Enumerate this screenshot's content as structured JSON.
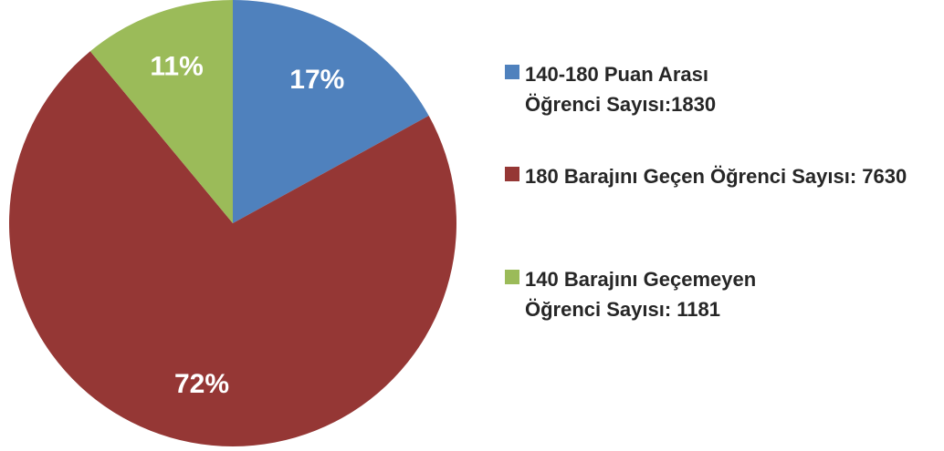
{
  "chart_data": {
    "type": "pie",
    "categories": [
      "140-180 Puan Arası Öğrenci Sayısı:1830",
      "180 Barajını Geçen Öğrenci Sayısı: 7630",
      "140 Barajını Geçemeyen Öğrenci Sayısı: 1181"
    ],
    "values": [
      17,
      72,
      11
    ],
    "value_labels": [
      "17%",
      "72%",
      "11%"
    ],
    "colors": [
      "#4f81bd",
      "#953735",
      "#9bbb59"
    ],
    "legend": "right"
  }
}
